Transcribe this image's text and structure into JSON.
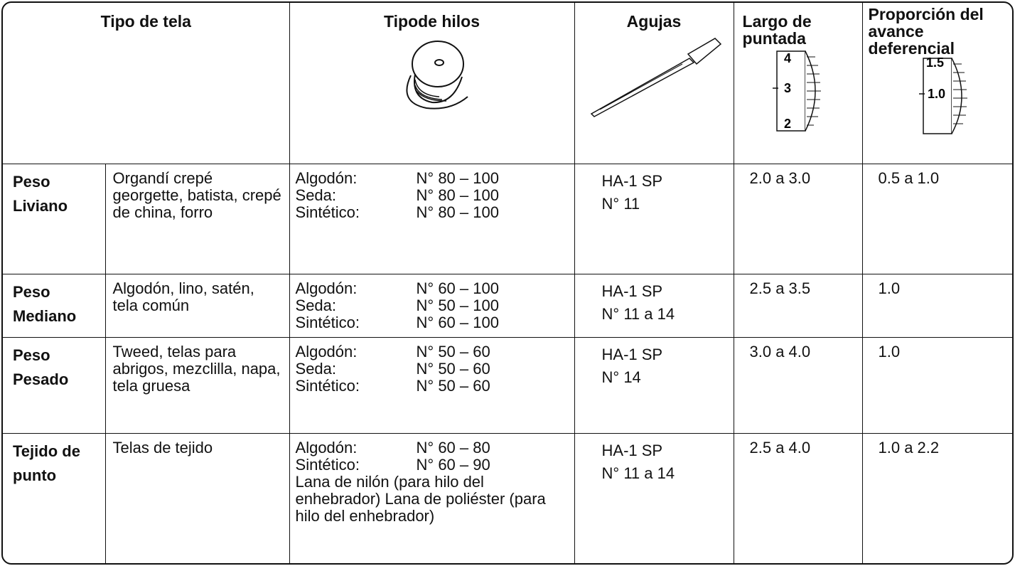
{
  "header": {
    "columns": [
      "Tipo de tela",
      "Tipode hilos",
      "Agujas",
      "Largo de puntada",
      "Proporción del avance deferencial"
    ],
    "stitch_dial": [
      "4",
      "3",
      "2"
    ],
    "feed_dial": [
      "1.5",
      "1.0"
    ]
  },
  "rows": [
    {
      "weight": "Peso Liviano",
      "fabrics": "Organdí crepé georgette, batista, crepé de china, forro",
      "threads": [
        [
          "Algodón:",
          "N° 80 – 100"
        ],
        [
          "Seda:",
          "N° 80 – 100"
        ],
        [
          "Sintético:",
          "N° 80 – 100"
        ]
      ],
      "needle": [
        "HA-1 SP",
        "N° 11"
      ],
      "stitch": "2.0 a 3.0",
      "feed": "0.5 a 1.0"
    },
    {
      "weight": "Peso Mediano",
      "fabrics": "Algodón, lino, satén, tela común",
      "threads": [
        [
          "Algodón:",
          "N° 60 – 100"
        ],
        [
          "Seda:",
          "N° 50 – 100"
        ],
        [
          "Sintético:",
          "N° 60 – 100"
        ]
      ],
      "needle": [
        "HA-1 SP",
        "N° 11 a 14"
      ],
      "stitch": "2.5 a 3.5",
      "feed": "1.0"
    },
    {
      "weight": "Peso Pesado",
      "fabrics": "Tweed, telas para abrigos, mezclilla, napa, tela gruesa",
      "threads": [
        [
          "Algodón:",
          "N° 50 – 60"
        ],
        [
          "Seda:",
          "N° 50 – 60"
        ],
        [
          "Sintético:",
          "N° 50 – 60"
        ]
      ],
      "needle": [
        "HA-1 SP",
        "N° 14"
      ],
      "stitch": "3.0 a 4.0",
      "feed": "1.0"
    },
    {
      "weight": "Tejido de punto",
      "fabrics": "Telas de tejido",
      "threads": [
        [
          "Algodón:",
          "N° 60 – 80"
        ],
        [
          "Sintético:",
          "N° 60 – 90"
        ]
      ],
      "thread_note": "Lana de nilón (para hilo del enhebrador) Lana de poliéster (para hilo del enhebrador)",
      "needle": [
        "HA-1 SP",
        "N° 11 a 14"
      ],
      "stitch": "2.5 a 4.0",
      "feed": "1.0 a 2.2"
    }
  ]
}
